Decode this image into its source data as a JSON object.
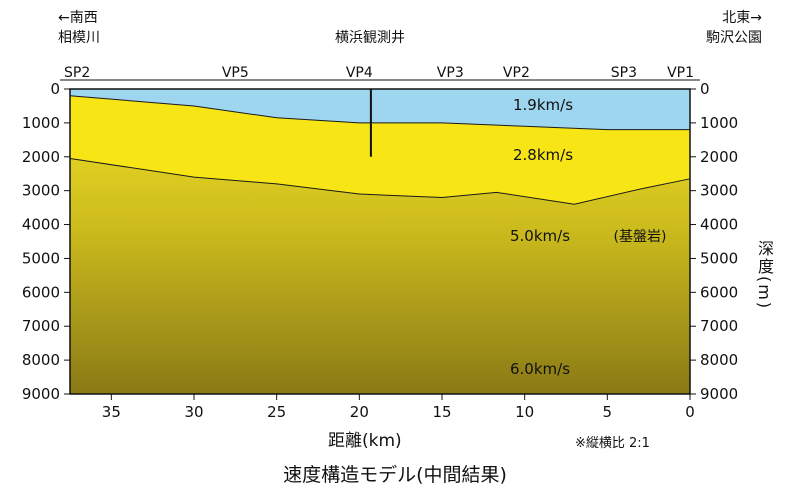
{
  "header": {
    "left_direction": "←南西",
    "left_place": "相模川",
    "center_place": "横浜観測井",
    "right_direction": "北東→",
    "right_place": "駒沢公園"
  },
  "survey_points": [
    {
      "label": "SP2",
      "distance_km": 36.5
    },
    {
      "label": "VP5",
      "distance_km": 27.5
    },
    {
      "label": "VP4",
      "distance_km": 20.0
    },
    {
      "label": "VP3",
      "distance_km": 14.5
    },
    {
      "label": "VP2",
      "distance_km": 10.5
    },
    {
      "label": "SP3",
      "distance_km": 4.0
    },
    {
      "label": "VP1",
      "distance_km": 0.8
    }
  ],
  "axes": {
    "x_label": "距離(km)",
    "x_ticks": [
      "35",
      "30",
      "25",
      "20",
      "15",
      "10",
      "5",
      "0"
    ],
    "x_tick_values": [
      35,
      30,
      25,
      20,
      15,
      10,
      5,
      0
    ],
    "x_range": [
      37.5,
      0
    ],
    "y_ticks": [
      "0",
      "1000",
      "2000",
      "3000",
      "4000",
      "5000",
      "6000",
      "7000",
      "8000",
      "9000"
    ],
    "y_tick_values": [
      0,
      1000,
      2000,
      3000,
      4000,
      5000,
      6000,
      7000,
      8000,
      9000
    ],
    "y_range": [
      0,
      9000
    ],
    "y_label": "深度(m)"
  },
  "layers": [
    {
      "velocity": "1.9km/s",
      "color": "#9dd6ee"
    },
    {
      "velocity": "2.8km/s",
      "color": "#f7e516"
    },
    {
      "velocity": "5.0km/s",
      "note": "(基盤岩)",
      "color_top": "#f1e226",
      "color_bottom": "#8a7a16"
    },
    {
      "velocity": "6.0km/s"
    }
  ],
  "boundaries": [
    {
      "name": "top-of-2.8",
      "points": [
        [
          37.5,
          200
        ],
        [
          30,
          500
        ],
        [
          25,
          850
        ],
        [
          20,
          1000
        ],
        [
          15,
          1000
        ],
        [
          10,
          1100
        ],
        [
          5,
          1200
        ],
        [
          0,
          1200
        ]
      ]
    },
    {
      "name": "top-of-basement",
      "points": [
        [
          37.5,
          2050
        ],
        [
          30,
          2600
        ],
        [
          25,
          2800
        ],
        [
          20,
          3100
        ],
        [
          15,
          3200
        ],
        [
          11.7,
          3050
        ],
        [
          7,
          3400
        ],
        [
          3,
          2950
        ],
        [
          0,
          2650
        ]
      ]
    }
  ],
  "well": {
    "distance_km": 19.3,
    "depth_m": 2000
  },
  "ratio_note": "※縦横比  2:1",
  "title": "速度構造モデル(中間結果)"
}
